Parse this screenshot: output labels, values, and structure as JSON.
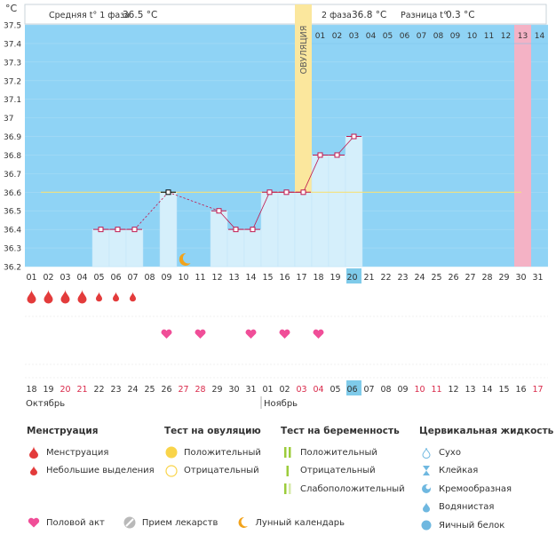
{
  "header": {
    "phase1_label": "Средняя t° 1 фаза",
    "phase1_value": "36.5 °C",
    "phase2_label": "2 фаза",
    "phase2_value": "36.8 °C",
    "diff_label": "Разница t°",
    "diff_value": "0.3 °C",
    "ovulation_label": "ОВУЛЯЦИЯ"
  },
  "chart_data": {
    "type": "line",
    "ylabel": "°C",
    "ylim": [
      36.2,
      37.5
    ],
    "yticks": [
      "37.5",
      "37.4",
      "37.3",
      "37.2",
      "37.1",
      "37",
      "36.9",
      "36.8",
      "36.7",
      "36.6",
      "36.5",
      "36.4",
      "36.3",
      "36.2"
    ],
    "coverline": 36.6,
    "cycle_days": [
      "01",
      "02",
      "03",
      "04",
      "05",
      "06",
      "07",
      "08",
      "09",
      "10",
      "11",
      "12",
      "13",
      "14",
      "15",
      "16",
      "17",
      "18",
      "19",
      "20",
      "21",
      "22",
      "23",
      "24",
      "25",
      "26",
      "27",
      "28",
      "29",
      "30",
      "31"
    ],
    "today_day": "20",
    "post_ovulation_days": [
      "01",
      "02",
      "03",
      "04",
      "05",
      "06",
      "07",
      "08",
      "09",
      "10",
      "11",
      "12",
      "13",
      "14"
    ],
    "highlight_post_day": "13",
    "temperatures": [
      null,
      null,
      null,
      null,
      36.4,
      36.4,
      36.4,
      null,
      36.6,
      null,
      null,
      36.5,
      36.4,
      36.4,
      36.6,
      36.6,
      36.6,
      36.8,
      36.8,
      36.9,
      null,
      null,
      null,
      null,
      null,
      null,
      null,
      null,
      null,
      null,
      null
    ],
    "dashed_gaps": [
      [
        7,
        9
      ],
      [
        9,
        12
      ]
    ],
    "ovulation_day": "17",
    "marked_point_day": "09",
    "menstruation": [
      "heavy",
      "heavy",
      "heavy",
      "heavy",
      "light",
      "light",
      "light"
    ],
    "intercourse_days": [
      "09",
      "11",
      "14",
      "16",
      "18"
    ],
    "moon_day": "10",
    "dates": [
      "18",
      "19",
      "20",
      "21",
      "22",
      "23",
      "24",
      "25",
      "26",
      "27",
      "28",
      "29",
      "30",
      "31",
      "01",
      "02",
      "03",
      "04",
      "05",
      "06",
      "07",
      "08",
      "09",
      "10",
      "11",
      "12",
      "13",
      "14",
      "15",
      "16",
      "17"
    ],
    "weekend_dates_idx": [
      2,
      3,
      9,
      10,
      16,
      17,
      23,
      24,
      30
    ],
    "today_date": "06",
    "month_labels": [
      "Октябрь",
      "Ноябрь"
    ]
  },
  "legend": {
    "menstruation": {
      "title": "Менструация",
      "items": [
        "Менструация",
        "Небольшие выделения"
      ]
    },
    "ovulation_test": {
      "title": "Тест на овуляцию",
      "items": [
        "Положительный",
        "Отрицательный"
      ]
    },
    "pregnancy_test": {
      "title": "Тест на беременность",
      "items": [
        "Положительный",
        "Отрицательный",
        "Слабоположительный"
      ]
    },
    "cervical": {
      "title": "Цервикальная жидкость",
      "items": [
        "Сухо",
        "Клейкая",
        "Кремообразная",
        "Водянистая",
        "Яичный белок"
      ]
    },
    "bottom": [
      "Половой акт",
      "Прием лекарств",
      "Лунный календарь"
    ]
  },
  "colors": {
    "sky": "#8fd3f5",
    "bar": "#d5effb",
    "line": "#c0184f",
    "ovulation": "#fbe79d",
    "pink": "#f4b2c5",
    "coverline": "#f5e17a",
    "heart": "#f04e98",
    "drop": "#e33b3b",
    "weekend": "#d9294a",
    "today": "#7fcbea"
  }
}
